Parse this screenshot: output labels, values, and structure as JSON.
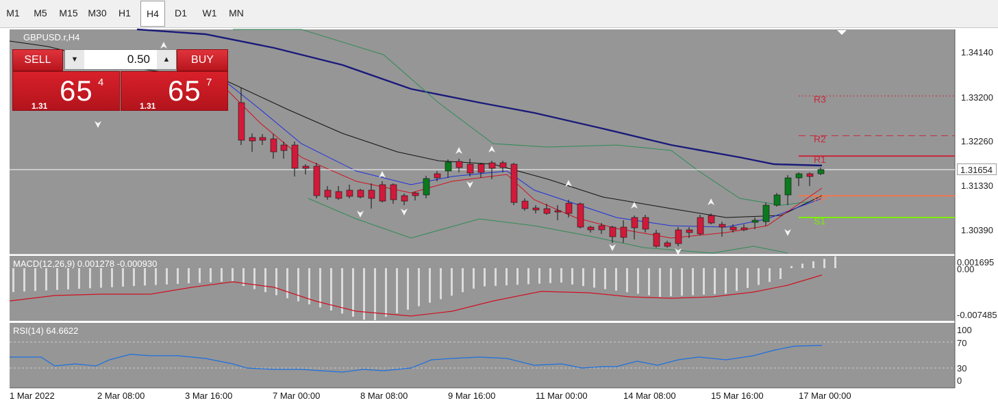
{
  "toolbar": {
    "timeframes": [
      "M1",
      "M5",
      "M15",
      "M30",
      "H1",
      "H4",
      "D1",
      "W1",
      "MN"
    ],
    "active": "H4"
  },
  "chart": {
    "symbol_label": "GBPUSD.r,H4",
    "background": "#969696",
    "bull_color": "#0a7a1e",
    "bear_color": "#d11a3a",
    "price_axis": {
      "ticks": [
        "1.34140",
        "1.33200",
        "1.32260",
        "1.31330",
        "1.30390"
      ],
      "current": "1.31654"
    },
    "date_axis": [
      "1 Mar 2022",
      "2 Mar 08:00",
      "3 Mar 16:00",
      "7 Mar 00:00",
      "8 Mar 08:00",
      "9 Mar 16:00",
      "11 Mar 00:00",
      "14 Mar 08:00",
      "15 Mar 16:00",
      "17 Mar 00:00"
    ],
    "pivots": [
      {
        "label": "R3",
        "price": 1.3321,
        "color": "#c8283c",
        "style": "dotted"
      },
      {
        "label": "R2",
        "price": 1.3237,
        "color": "#c8283c",
        "style": "dashed"
      },
      {
        "label": "R1",
        "price": 1.3194,
        "color": "#c8283c",
        "style": "solid"
      },
      {
        "label": "PP",
        "price": 1.311,
        "color": "#f07850",
        "style": "solid"
      },
      {
        "label": "S1",
        "price": 1.3064,
        "color": "#7cf000",
        "style": "solid"
      }
    ]
  },
  "trade_panel": {
    "sell_label": "SELL",
    "buy_label": "BUY",
    "lot": "0.50",
    "sell_price": {
      "big": "1.31",
      "main": "65",
      "sup": "4"
    },
    "buy_price": {
      "big": "1.31",
      "main": "65",
      "sup": "7"
    }
  },
  "macd": {
    "label": "MACD(12,26,9) 0.001278 -0.000930",
    "ticks": [
      "0.001695",
      "0.00",
      "-0.007485"
    ]
  },
  "rsi": {
    "label": "RSI(14) 64.6622",
    "ticks": [
      "100",
      "70",
      "30",
      "0"
    ]
  }
}
